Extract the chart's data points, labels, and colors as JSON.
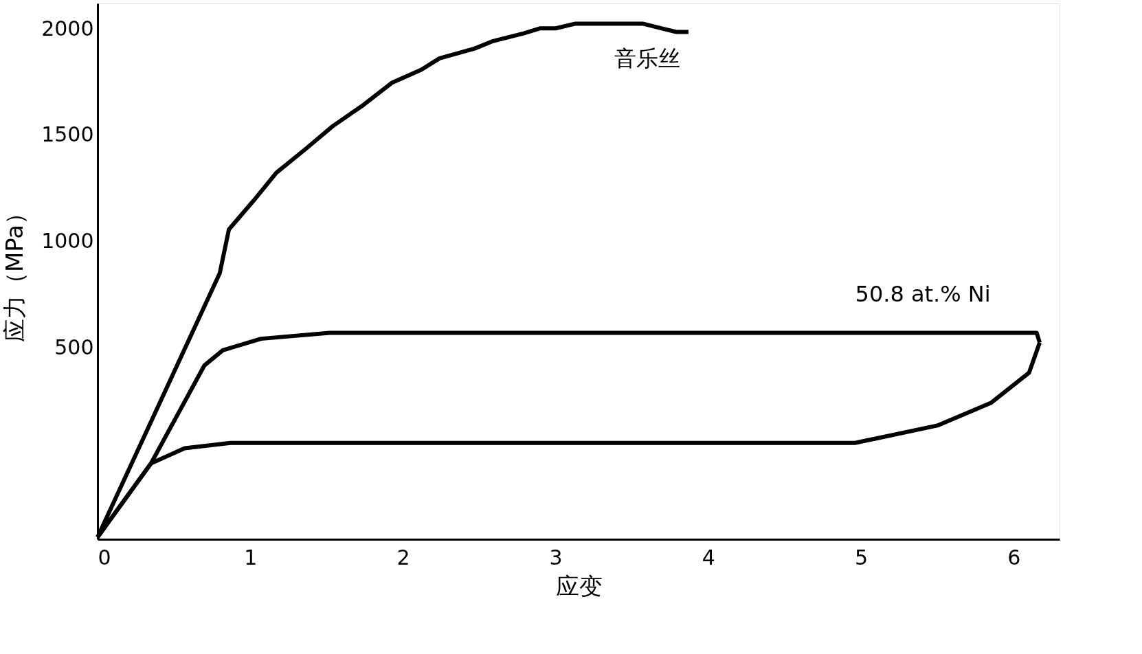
{
  "chart_data": {
    "type": "line",
    "xlabel": "应变",
    "ylabel": "应力（MPa）",
    "xlim": [
      0,
      6.3
    ],
    "ylim": [
      -400,
      2120
    ],
    "xticks": [
      0,
      1,
      2,
      3,
      4,
      5,
      6
    ],
    "yticks": [
      500,
      1000,
      1500,
      2000
    ],
    "grid": false,
    "legend": false,
    "marker": "none",
    "line_style": "solid",
    "series": [
      {
        "name": "音乐丝",
        "color": "#000000",
        "x": [
          0,
          0.8,
          0.86,
          1.02,
          1.17,
          1.37,
          1.54,
          1.74,
          1.93,
          2.12,
          2.24,
          2.47,
          2.59,
          2.79,
          2.9,
          3.0,
          3.13,
          3.57,
          3.69,
          3.79,
          3.87
        ],
        "values": [
          -390,
          851,
          1057,
          1191,
          1323,
          1440,
          1543,
          1642,
          1748,
          1808,
          1862,
          1908,
          1943,
          1979,
          2003,
          2003,
          2025,
          2025,
          2003,
          1986,
          1986
        ]
      },
      {
        "name": "50.8 at.% Ni",
        "color": "#000000",
        "x": [
          0,
          0.35,
          0.7,
          0.82,
          1.07,
          1.52,
          6.15,
          6.17
        ],
        "values": [
          -390,
          -43,
          418,
          489,
          543,
          571,
          571,
          525
        ]
      },
      {
        "color": "#000000",
        "x": [
          6.17,
          6.1,
          5.85,
          5.5,
          4.96,
          0.87,
          0.57,
          0.35,
          0
        ],
        "values": [
          525,
          383,
          241,
          135,
          53,
          53,
          28,
          -43,
          -390
        ]
      }
    ]
  }
}
